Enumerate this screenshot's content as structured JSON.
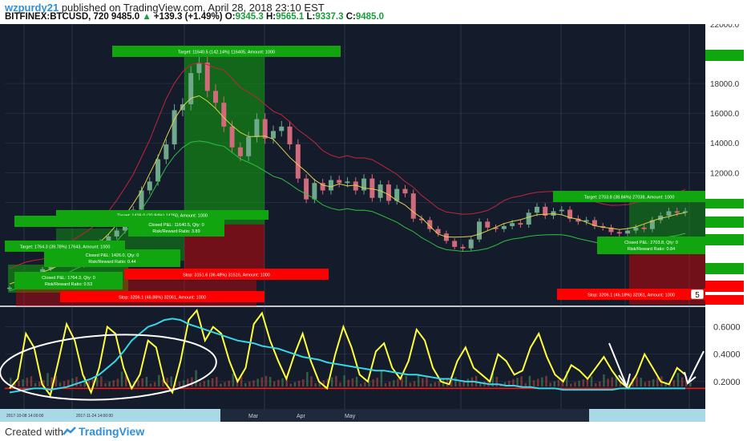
{
  "header": {
    "author": "wzpurdy21",
    "published": "published on TradingView.com, April 28, 2018 23:10 EST",
    "symbol": "BITFINEX:BTCUSD, 720",
    "last": "9485.0",
    "change": "+139.3 (+1.49%)",
    "o_label": "O:",
    "o_value": "9345.3",
    "h_label": "H:",
    "h_value": "9565.1",
    "l_label": "L:",
    "l_value": "9337.3",
    "c_label": "C:",
    "c_value": "9485.0"
  },
  "footer": {
    "created": "Created with",
    "brand": "TradingView"
  },
  "colors": {
    "background": "#141b2b",
    "candle_up": "#6fa88a",
    "candle_down": "#d16a7a",
    "target_green": "#11a50f",
    "stop_red": "#ff0000",
    "indicator_yellow": "#ffff3b",
    "indicator_cyan": "#39d6e6",
    "threshold_red": "#ff1a1a"
  },
  "chart_data": [
    {
      "type": "line",
      "panel": "price",
      "ylim": [
        3000,
        22000
      ],
      "yticks": [
        {
          "label": "22000.0",
          "value": 22000
        },
        {
          "label": "18000.0",
          "value": 18000
        },
        {
          "label": "16000.0",
          "value": 16000
        },
        {
          "label": "14000.0",
          "value": 14000
        },
        {
          "label": "12000.0",
          "value": 12000
        },
        {
          "label": "10000.0",
          "value": 10000
        }
      ],
      "price_badge": "5",
      "xlabels": [
        "2017-10-08 14:00:00",
        "2017-11-24 14:00:00",
        "Mar",
        "Apr",
        "May"
      ],
      "series": [
        {
          "values": [
            4250,
            4350,
            4600,
            4800,
            5500,
            5900,
            6050,
            5900,
            5750,
            6450,
            7100,
            7350,
            7700,
            8100,
            8900,
            9500,
            10800,
            11400,
            12900,
            13900,
            16200,
            16600,
            18700,
            19400,
            17500,
            16700,
            15100,
            13700,
            13100,
            14400,
            15600,
            14300,
            14800,
            15100,
            13900,
            11600,
            10200,
            11300,
            10800,
            11500,
            11300,
            11400,
            10800,
            11600,
            10300,
            11200,
            10100,
            10900,
            10600,
            8900,
            8800,
            8200,
            7900,
            7400,
            7000,
            6900,
            7500,
            8700,
            8300,
            8200,
            8400,
            8600,
            8500,
            9300,
            9700,
            9100,
            9400,
            9500,
            8900,
            8700,
            8800,
            8400,
            8300,
            8000,
            7900,
            8100,
            8300,
            8200,
            8800,
            9100,
            9400,
            9300,
            9400
          ]
        }
      ],
      "trades": [
        {
          "target": "Target: 1764.3 (39.78%) 17643, Amount: 1000",
          "closed": "Closed P&L: 1764.3, Qty: 0",
          "rr": "Risk/Reward Ratio: 0.53",
          "stop": "Stop: 3206.1 (46.86%) 32061, Amount: 1000"
        },
        {
          "target": "Target: 1426.0 (20.84%) 14260, Amount: 1000",
          "closed": "Closed P&L: 1426.0, Qty: 0",
          "rr": "Risk/Reward Ratio: 0.44"
        },
        {
          "target": "Target: 11640.5 (142.14%) 116405, Amount: 1000",
          "closed": "Closed P&L: 11640.5, Qty: 0",
          "rr": "Risk/Reward Ratio: 3.89",
          "stop": "Stop: 3151.6 (36.48%) 31516, Amount: 1000"
        },
        {
          "target": "Target: 2703.8 (38.84%) 27038, Amount: 1000",
          "closed": "Closed P&L: 2703.8, Qty: 0",
          "rr": "Risk/Reward Ratio: 0.84",
          "stop": "Stop: 3206.1 (46.18%) 32061, Amount: 1000"
        }
      ]
    },
    {
      "type": "line",
      "panel": "indicator",
      "ylim": [
        0,
        0.75
      ],
      "yticks": [
        {
          "label": "0.6000",
          "value": 0.6
        },
        {
          "label": "0.4000",
          "value": 0.4
        },
        {
          "label": "0.2000",
          "value": 0.2
        }
      ],
      "threshold": 0.15,
      "series": [
        {
          "name": "",
          "color": "yellow",
          "values": [
            0.15,
            0.22,
            0.55,
            0.45,
            0.18,
            0.1,
            0.35,
            0.62,
            0.5,
            0.25,
            0.12,
            0.3,
            0.6,
            0.55,
            0.3,
            0.15,
            0.25,
            0.5,
            0.45,
            0.2,
            0.12,
            0.35,
            0.65,
            0.72,
            0.5,
            0.6,
            0.55,
            0.35,
            0.2,
            0.3,
            0.62,
            0.7,
            0.5,
            0.35,
            0.22,
            0.4,
            0.55,
            0.35,
            0.2,
            0.15,
            0.4,
            0.6,
            0.45,
            0.25,
            0.2,
            0.42,
            0.48,
            0.3,
            0.22,
            0.35,
            0.58,
            0.5,
            0.3,
            0.2,
            0.18,
            0.35,
            0.45,
            0.3,
            0.25,
            0.2,
            0.4,
            0.35,
            0.25,
            0.28,
            0.45,
            0.55,
            0.38,
            0.25,
            0.2,
            0.32,
            0.28,
            0.22,
            0.3,
            0.38,
            0.28,
            0.2,
            0.15,
            0.25,
            0.4,
            0.3,
            0.2,
            0.18,
            0.3,
            0.25
          ]
        },
        {
          "name": "",
          "color": "cyan",
          "values": [
            0.12,
            0.13,
            0.14,
            0.15,
            0.15,
            0.14,
            0.15,
            0.16,
            0.18,
            0.2,
            0.22,
            0.25,
            0.3,
            0.35,
            0.42,
            0.5,
            0.55,
            0.6,
            0.62,
            0.65,
            0.66,
            0.65,
            0.62,
            0.6,
            0.58,
            0.56,
            0.54,
            0.52,
            0.5,
            0.49,
            0.48,
            0.46,
            0.45,
            0.44,
            0.42,
            0.4,
            0.38,
            0.37,
            0.36,
            0.34,
            0.33,
            0.32,
            0.31,
            0.3,
            0.29,
            0.28,
            0.28,
            0.27,
            0.26,
            0.25,
            0.25,
            0.24,
            0.23,
            0.22,
            0.22,
            0.21,
            0.2,
            0.2,
            0.19,
            0.18,
            0.18,
            0.17,
            0.17,
            0.16,
            0.16,
            0.15,
            0.15,
            0.15,
            0.14,
            0.14,
            0.14,
            0.14,
            0.14,
            0.14,
            0.14,
            0.15,
            0.15,
            0.15,
            0.15,
            0.15,
            0.15,
            0.15,
            0.15,
            0.15
          ]
        }
      ]
    }
  ]
}
